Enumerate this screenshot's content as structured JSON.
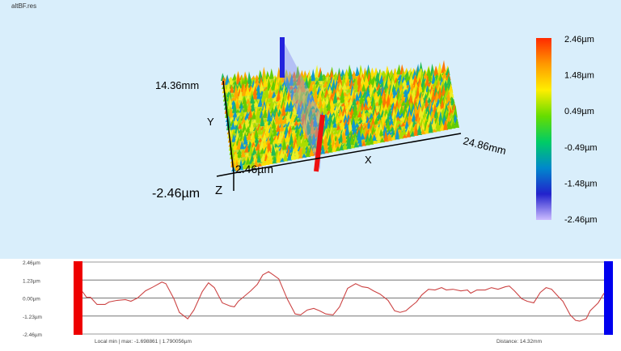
{
  "window": {
    "file_name": "altBF.res"
  },
  "surface_view": {
    "axis_labels": {
      "x": "X",
      "y": "Y",
      "z": "Z"
    },
    "x_extent_label": "24.86mm",
    "y_extent_label": "14.36mm",
    "z_max_label": "2.46µm",
    "z_min_label": "-2.46µm",
    "profile_start_color": "#ee1111",
    "profile_end_color": "#1111dd"
  },
  "colorbar": {
    "labels": [
      "2.46µm",
      "1.48µm",
      "0.49µm",
      "-0.49µm",
      "-1.48µm",
      "-2.46µm"
    ],
    "colors": [
      "#ff2a00",
      "#ff9900",
      "#ffee00",
      "#66dd00",
      "#00cc66",
      "#0088cc",
      "#2222cc",
      "#ccbbff"
    ]
  },
  "chart_data": {
    "type": "line",
    "title": "",
    "xlabel": "",
    "ylabel": "",
    "xlim": [
      0,
      14.32
    ],
    "ylim": [
      -2.46,
      2.46
    ],
    "y_tick_labels": [
      "2.46µm",
      "1.23µm",
      "0.00µm",
      "-1.23µm",
      "-2.46µm"
    ],
    "y_ticks": [
      2.46,
      1.23,
      0,
      -1.23,
      -2.46
    ],
    "grid": true,
    "line_color": "#cc4444",
    "start_marker_color": "#ee0000",
    "end_marker_color": "#0000ee",
    "x": [
      0,
      0.11,
      0.22,
      0.4,
      0.62,
      0.73,
      0.95,
      1.18,
      1.33,
      1.51,
      1.73,
      1.95,
      2.18,
      2.29,
      2.51,
      2.66,
      2.89,
      3.06,
      3.29,
      3.46,
      3.62,
      3.84,
      4.06,
      4.17,
      4.28,
      4.44,
      4.62,
      4.8,
      4.95,
      5.11,
      5.24,
      5.39,
      5.62,
      5.84,
      5.99,
      6.17,
      6.35,
      6.51,
      6.68,
      6.88,
      7.06,
      7.28,
      7.5,
      7.68,
      7.84,
      7.99,
      8.17,
      8.39,
      8.57,
      8.72,
      8.88,
      9.06,
      9.17,
      9.32,
      9.5,
      9.68,
      9.86,
      9.99,
      10.17,
      10.39,
      10.57,
      10.66,
      10.83,
      11.06,
      11.23,
      11.41,
      11.61,
      11.72,
      11.86,
      12.06,
      12.21,
      12.39,
      12.57,
      12.73,
      12.88,
      13.06,
      13.19,
      13.39,
      13.54,
      13.65,
      13.83,
      13.94,
      14.16,
      14.32
    ],
    "y": [
      0.44,
      0.05,
      0.05,
      -0.44,
      -0.44,
      -0.27,
      -0.16,
      -0.11,
      -0.22,
      0,
      0.49,
      0.77,
      1.09,
      0.98,
      -0.05,
      -0.98,
      -1.42,
      -0.82,
      0.44,
      1.04,
      0.71,
      -0.33,
      -0.55,
      -0.6,
      -0.22,
      0.11,
      0.49,
      0.93,
      1.58,
      1.8,
      1.58,
      1.31,
      -0.05,
      -1.09,
      -1.15,
      -0.82,
      -0.71,
      -0.87,
      -1.09,
      -1.15,
      -0.6,
      0.66,
      0.98,
      0.77,
      0.71,
      0.49,
      0.27,
      -0.16,
      -0.87,
      -0.98,
      -0.87,
      -0.49,
      -0.27,
      0.22,
      0.6,
      0.55,
      0.71,
      0.55,
      0.6,
      0.49,
      0.55,
      0.33,
      0.55,
      0.55,
      0.71,
      0.6,
      0.77,
      0.82,
      0.49,
      -0.05,
      -0.22,
      -0.33,
      0.38,
      0.71,
      0.6,
      0.11,
      -0.22,
      -1.15,
      -1.53,
      -1.58,
      -1.42,
      -0.87,
      -0.33,
      0.33
    ]
  },
  "profile_status": {
    "local_minmax": "Local min | max:  -1.698861 | 1.790056µm",
    "distance": "Distance: 14.32mm"
  }
}
